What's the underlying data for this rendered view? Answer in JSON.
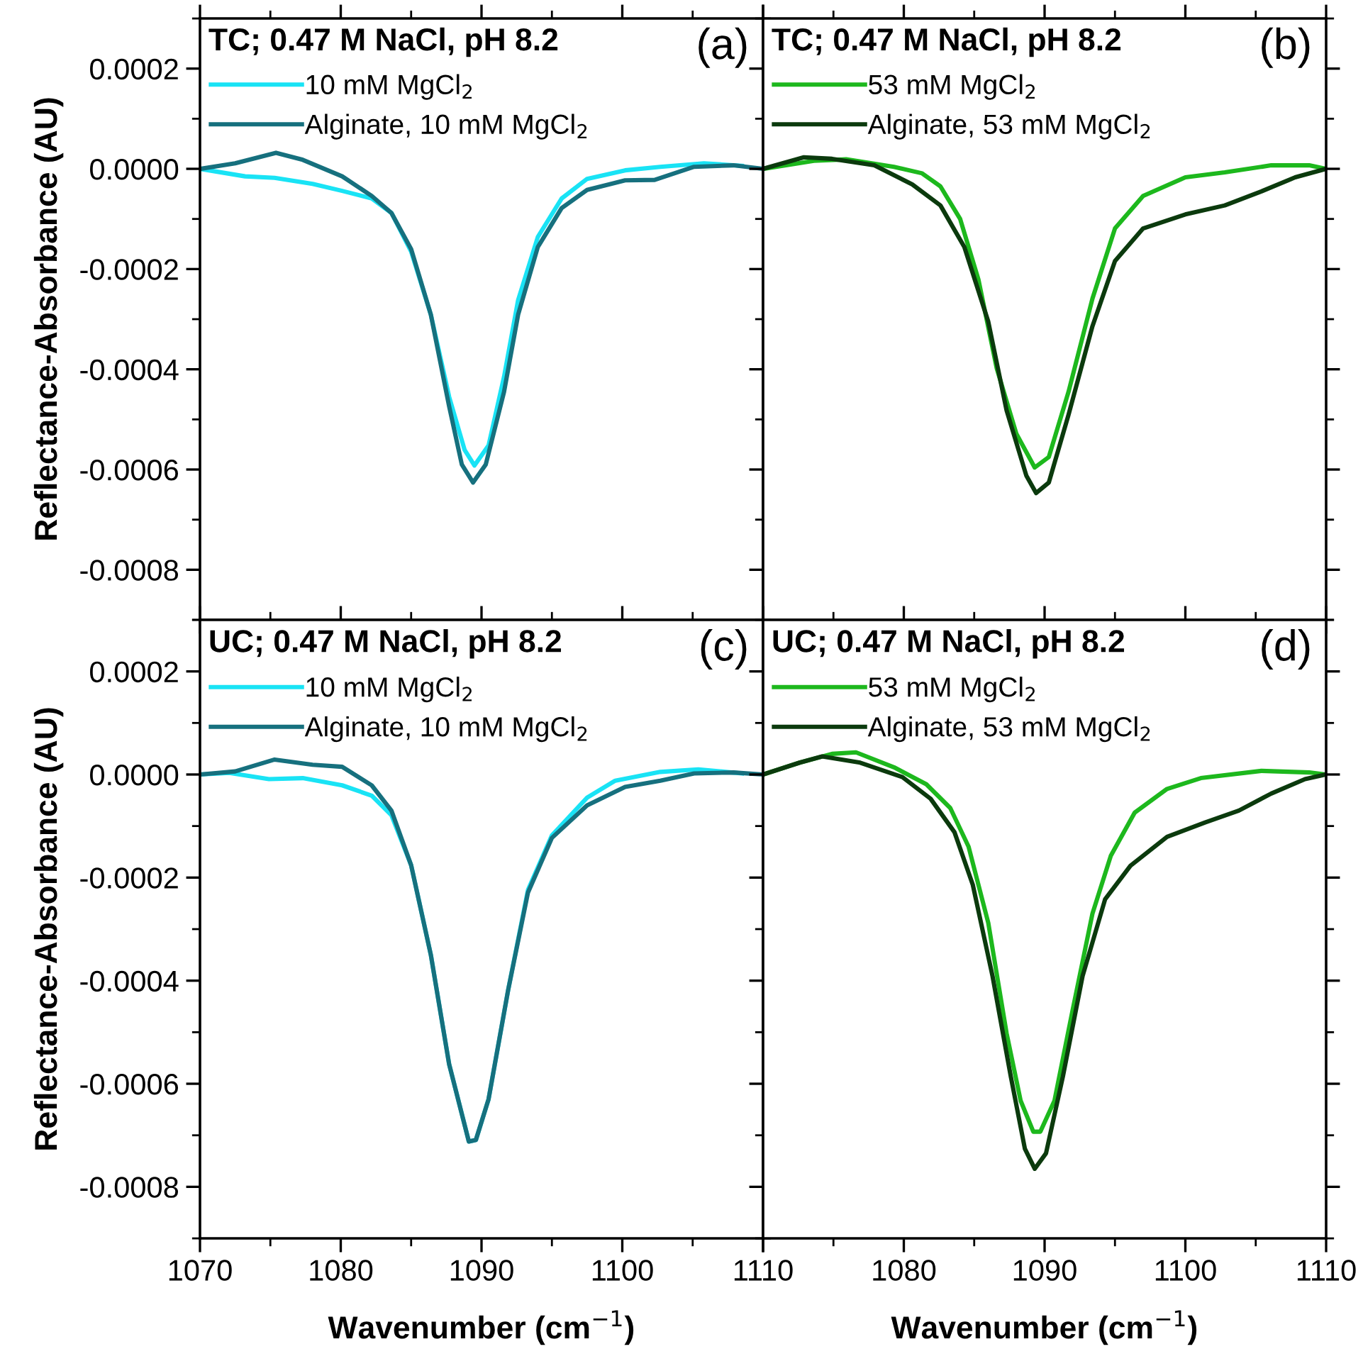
{
  "chart_data": [
    {
      "type": "line",
      "title": "TC; 0.47 M NaCl, pH 8.2",
      "annotations": [
        "(a)"
      ],
      "ylabel": "Reflectance-Absorbance (AU)",
      "xlim": [
        1070,
        1110
      ],
      "xticks": [
        1070,
        1080,
        1090,
        1100,
        1110
      ],
      "ylim": [
        -0.0009,
        0.0003
      ],
      "yticks": [
        {
          "value": -0.0008,
          "label": "-0.0008"
        },
        {
          "value": -0.0006,
          "label": "-0.0006"
        },
        {
          "value": -0.0004,
          "label": "-0.0004"
        },
        {
          "value": -0.0002,
          "label": "-0.0002"
        },
        {
          "value": 0,
          "label": "0.0000"
        },
        {
          "value": 0.0002,
          "label": "0.0002"
        }
      ],
      "tick_labels": "y",
      "legend": "top left",
      "grid": false,
      "line_style": "solid",
      "series": [
        {
          "name": "10 mM MgCl$_{2}$",
          "color": "#19e3f5",
          "x": [
            1070,
            1073.2,
            1075.3,
            1078,
            1080.1,
            1082.2,
            1083.6,
            1085,
            1086.4,
            1087.7,
            1088.8,
            1089.5,
            1090.5,
            1091.6,
            1092.6,
            1094,
            1095.7,
            1097.5,
            1100.2,
            1102.7,
            1105.8,
            1108.5
          ],
          "values": [
            0,
            -1.5e-05,
            -1.8e-05,
            -3e-05,
            -4.4e-05,
            -5.9e-05,
            -8.8e-05,
            -0.000165,
            -0.000291,
            -0.000455,
            -0.000561,
            -0.000592,
            -0.000552,
            -0.000415,
            -0.000262,
            -0.000136,
            -5.9e-05,
            -2e-05,
            -3e-06,
            4e-06,
            1.1e-05,
            6e-06
          ]
        },
        {
          "name": "Alginate, 10 mM MgCl$_{2}$",
          "color": "#16707e",
          "x": [
            1070,
            1072.5,
            1075.4,
            1077.3,
            1080.1,
            1082.2,
            1083.6,
            1085,
            1086.4,
            1087.7,
            1088.6,
            1089.4,
            1090.3,
            1091.6,
            1092.6,
            1094,
            1095.7,
            1097.5,
            1100.2,
            1102.3,
            1105.1,
            1107.9,
            1110
          ],
          "values": [
            0,
            1.1e-05,
            3.2e-05,
            1.8e-05,
            -1.5e-05,
            -5.4e-05,
            -8.8e-05,
            -0.00016,
            -0.000291,
            -0.000474,
            -0.00059,
            -0.000626,
            -0.00059,
            -0.000445,
            -0.000291,
            -0.000156,
            -7.8e-05,
            -4.2e-05,
            -2.3e-05,
            -2.2e-05,
            4e-06,
            7e-06,
            0
          ]
        }
      ]
    },
    {
      "type": "line",
      "title": "TC; 0.47 M NaCl, pH 8.2",
      "annotations": [
        "(b)"
      ],
      "xlim": [
        1070,
        1110
      ],
      "xticks": [
        {
          "value": 1070,
          "label": null
        },
        1080,
        1090,
        1100,
        1110
      ],
      "ylim": [
        -0.0009,
        0.0003
      ],
      "yticks": [
        {
          "value": -0.0008,
          "label": null
        },
        {
          "value": -0.0006,
          "label": null
        },
        {
          "value": -0.0004,
          "label": null
        },
        {
          "value": -0.0002,
          "label": null
        },
        {
          "value": 0,
          "label": null
        },
        {
          "value": 0.0002,
          "label": null
        }
      ],
      "tick_labels": false,
      "legend": "top left",
      "grid": false,
      "line_style": "solid",
      "series": [
        {
          "name": "53 mM MgCl$_{2}$",
          "color": "#1db81d",
          "x": [
            1070,
            1073.6,
            1075.9,
            1079.3,
            1081.3,
            1082.6,
            1084,
            1085.3,
            1086.6,
            1088,
            1089.3,
            1090.3,
            1091.7,
            1093.4,
            1095,
            1097,
            1100,
            1102.8,
            1106.1,
            1108.8,
            1110
          ],
          "values": [
            0,
            1.6e-05,
            1.9e-05,
            4e-06,
            -9e-06,
            -3.5e-05,
            -0.0001,
            -0.000221,
            -0.000398,
            -0.000529,
            -0.000596,
            -0.000575,
            -0.000445,
            -0.000259,
            -0.000119,
            -5.4e-05,
            -1.7e-05,
            -7e-06,
            7e-06,
            7e-06,
            0
          ]
        },
        {
          "name": "Alginate, 53 mM MgCl$_{2}$",
          "color": "#0b3a0d",
          "x": [
            1070,
            1072.9,
            1074.9,
            1077.9,
            1080.6,
            1082.6,
            1084.3,
            1086,
            1087.3,
            1088.7,
            1089.4,
            1090.3,
            1091.7,
            1093.4,
            1095,
            1097,
            1100,
            1102.8,
            1105.4,
            1107.8,
            1110
          ],
          "values": [
            0,
            2.3e-05,
            2e-05,
            7e-06,
            -3.1e-05,
            -7.3e-05,
            -0.000156,
            -0.000305,
            -0.000482,
            -0.000612,
            -0.000647,
            -0.000626,
            -0.000491,
            -0.000314,
            -0.000184,
            -0.000119,
            -9.1e-05,
            -7.3e-05,
            -4.5e-05,
            -1.7e-05,
            0
          ]
        }
      ]
    },
    {
      "type": "line",
      "title": "UC; 0.47 M NaCl, pH 8.2",
      "annotations": [
        "(c)"
      ],
      "xlabel": "Wavenumber (cm$^{−1}$)",
      "ylabel": "Reflectance-Absorbance (AU)",
      "xlim": [
        1070,
        1110
      ],
      "xticks": [
        1070,
        1080,
        1090,
        1100,
        1110
      ],
      "ylim": [
        -0.0009,
        0.0003
      ],
      "yticks": [
        {
          "value": -0.0008,
          "label": "-0.0008"
        },
        {
          "value": -0.0006,
          "label": "-0.0006"
        },
        {
          "value": -0.0004,
          "label": "-0.0004"
        },
        {
          "value": -0.0002,
          "label": "-0.0002"
        },
        {
          "value": 0,
          "label": "0.0000"
        },
        {
          "value": 0.0002,
          "label": "0.0002"
        }
      ],
      "legend": "top left",
      "grid": false,
      "line_style": "solid",
      "series": [
        {
          "name": "10 mM MgCl$_{2}$",
          "color": "#19e3f5",
          "x": [
            1070,
            1072.1,
            1074.9,
            1077.3,
            1080.1,
            1082.2,
            1083.6,
            1085,
            1086.4,
            1087.7,
            1089.1,
            1089.6,
            1090.5,
            1091.9,
            1093.3,
            1095,
            1097.5,
            1099.5,
            1102.7,
            1105.4,
            1108.5
          ],
          "values": [
            0,
            3e-06,
            -9e-06,
            -7e-06,
            -2.1e-05,
            -4.1e-05,
            -7.9e-05,
            -0.000176,
            -0.00035,
            -0.000562,
            -0.000712,
            -0.000709,
            -0.00063,
            -0.000417,
            -0.000224,
            -0.000118,
            -4.5e-05,
            -1.2e-05,
            5e-06,
            1e-05,
            2e-06
          ]
        },
        {
          "name": "Alginate, 10 mM MgCl$_{2}$",
          "color": "#16707e",
          "x": [
            1070,
            1072.5,
            1075.3,
            1078,
            1080.1,
            1082.2,
            1083.6,
            1085,
            1086.4,
            1087.7,
            1089.1,
            1089.6,
            1090.5,
            1091.9,
            1093.3,
            1095,
            1097.5,
            1100.2,
            1102.7,
            1105.1,
            1107.9,
            1110
          ],
          "values": [
            0,
            6e-06,
            2.9e-05,
            1.9e-05,
            1.5e-05,
            -2.1e-05,
            -7e-05,
            -0.000176,
            -0.00035,
            -0.000562,
            -0.000712,
            -0.000709,
            -0.00063,
            -0.000417,
            -0.000229,
            -0.000123,
            -6e-05,
            -2.4e-05,
            -1.2e-05,
            2e-06,
            4e-06,
            0
          ]
        }
      ]
    },
    {
      "type": "line",
      "title": "UC; 0.47 M NaCl, pH 8.2",
      "annotations": [
        "(d)"
      ],
      "xlabel": "Wavenumber (cm$^{−1}$)",
      "xlim": [
        1070,
        1110
      ],
      "xticks": [
        {
          "value": 1070,
          "label": null
        },
        1080,
        1090,
        1100,
        1110
      ],
      "ylim": [
        -0.0009,
        0.0003
      ],
      "yticks": [
        {
          "value": -0.0008,
          "label": null
        },
        {
          "value": -0.0006,
          "label": null
        },
        {
          "value": -0.0004,
          "label": null
        },
        {
          "value": -0.0002,
          "label": null
        },
        {
          "value": 0,
          "label": null
        },
        {
          "value": 0.0002,
          "label": null
        }
      ],
      "tick_labels": "x",
      "legend": "top left",
      "grid": false,
      "line_style": "solid",
      "series": [
        {
          "name": "53 mM MgCl$_{2}$",
          "color": "#1db81d",
          "x": [
            1070,
            1072.6,
            1074.9,
            1076.6,
            1079.3,
            1081.6,
            1083.3,
            1084.6,
            1086,
            1087.3,
            1088.3,
            1089.2,
            1089.7,
            1090.7,
            1092,
            1093.4,
            1094.7,
            1096.4,
            1098.7,
            1101.1,
            1105.4,
            1108.8,
            1110
          ],
          "values": [
            0,
            2.3e-05,
            4e-05,
            4.3e-05,
            1.4e-05,
            -1.9e-05,
            -6.5e-05,
            -0.00014,
            -0.000288,
            -0.000502,
            -0.000633,
            -0.000693,
            -0.000693,
            -0.000633,
            -0.000456,
            -0.00027,
            -0.000158,
            -7.4e-05,
            -2.8e-05,
            -7e-06,
            7e-06,
            4e-06,
            0
          ]
        },
        {
          "name": "Alginate, 53 mM MgCl$_{2}$",
          "color": "#0b3a0d",
          "x": [
            1070,
            1072.6,
            1074.2,
            1076.9,
            1079.9,
            1081.9,
            1083.6,
            1084.9,
            1086.3,
            1087.6,
            1088.6,
            1089.3,
            1090.1,
            1091.3,
            1092.7,
            1094.3,
            1096.1,
            1098.7,
            1101.4,
            1103.8,
            1106.1,
            1108.5,
            1110
          ],
          "values": [
            0,
            2.3e-05,
            3.5e-05,
            2.3e-05,
            -5e-06,
            -4.7e-05,
            -0.000112,
            -0.000214,
            -0.000391,
            -0.000586,
            -0.000726,
            -0.000765,
            -0.000735,
            -0.000586,
            -0.000391,
            -0.000242,
            -0.000177,
            -0.000121,
            -9.3e-05,
            -7e-05,
            -3.7e-05,
            -9e-06,
            0
          ]
        }
      ]
    }
  ]
}
